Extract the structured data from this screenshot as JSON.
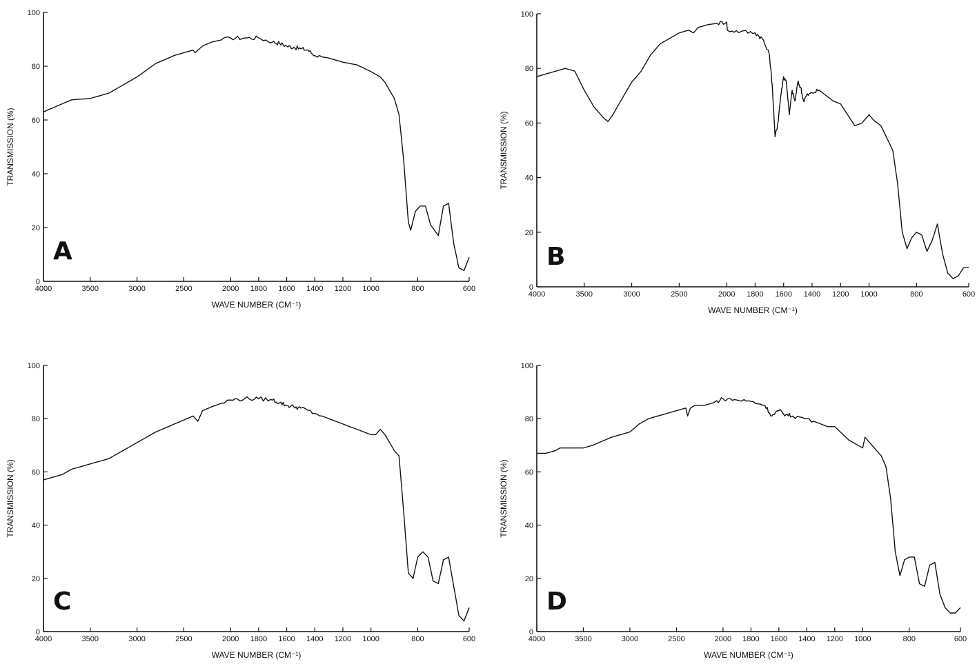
{
  "chart_data": [
    {
      "type": "line",
      "panel_label": "A",
      "xlabel": "WAVE NUMBER (CM⁻¹)",
      "ylabel": "TRANSMISSION (%)",
      "xlim": [
        4000,
        600
      ],
      "ylim": [
        0,
        100
      ],
      "x_ticks": [
        "4000",
        "3500",
        "3000",
        "2500",
        "2000",
        "1800",
        "1600",
        "1400",
        "1200",
        "1000",
        "800",
        "600"
      ],
      "y_ticks": [
        "0",
        "20",
        "40",
        "60",
        "80",
        "100"
      ],
      "grid": false,
      "series": [
        {
          "x": [
            4000,
            3800,
            3700,
            3500,
            3300,
            3000,
            2800,
            2600,
            2400,
            2380,
            2300,
            2200,
            2000,
            1900,
            1800,
            1700,
            1650,
            1600,
            1550,
            1500,
            1450,
            1400,
            1300,
            1200,
            1100,
            1000,
            960,
            940,
            920,
            900,
            880,
            860,
            840,
            830,
            810,
            790,
            770,
            750,
            720,
            700,
            680,
            660,
            640,
            620,
            600
          ],
          "y": [
            63,
            66,
            67.5,
            68,
            70,
            76,
            81,
            84,
            86,
            85,
            87.5,
            89,
            90.5,
            90.5,
            90.5,
            89,
            88.5,
            87.5,
            87,
            86.5,
            86,
            84,
            83,
            81.5,
            80.5,
            78,
            76,
            74,
            71,
            68,
            62,
            45,
            22,
            19,
            26,
            28,
            28,
            21,
            17,
            28,
            29,
            14,
            5,
            4,
            9
          ]
        }
      ]
    },
    {
      "type": "line",
      "panel_label": "B",
      "xlabel": "WAVE NUMBER (CM⁻¹)",
      "ylabel": "TRANSMISSION (%)",
      "xlim": [
        4000,
        600
      ],
      "ylim": [
        0,
        100
      ],
      "x_ticks": [
        "4000",
        "3500",
        "3000",
        "2500",
        "2000",
        "1800",
        "1600",
        "1400",
        "1200",
        "1000",
        "800",
        "600"
      ],
      "y_ticks": [
        "0",
        "20",
        "40",
        "60",
        "80",
        "100"
      ],
      "grid": false,
      "series": [
        {
          "x": [
            4000,
            3800,
            3700,
            3600,
            3500,
            3400,
            3300,
            3250,
            3200,
            3100,
            3000,
            2900,
            2800,
            2700,
            2600,
            2500,
            2400,
            2350,
            2300,
            2200,
            2100,
            2000,
            1995,
            1900,
            1800,
            1750,
            1700,
            1680,
            1660,
            1640,
            1620,
            1600,
            1580,
            1560,
            1540,
            1520,
            1500,
            1480,
            1460,
            1440,
            1400,
            1350,
            1300,
            1250,
            1200,
            1100,
            1050,
            1000,
            980,
            950,
            900,
            880,
            860,
            840,
            820,
            800,
            780,
            760,
            740,
            720,
            700,
            680,
            660,
            640,
            620,
            600
          ],
          "y": [
            77,
            79,
            80,
            79,
            72,
            66,
            62,
            60.5,
            63,
            69,
            75,
            79,
            85,
            89,
            91,
            93,
            94,
            93,
            95,
            96,
            96.5,
            97,
            94,
            93.5,
            93,
            91,
            85,
            74,
            55,
            60,
            70,
            77,
            75,
            63,
            72,
            68,
            75,
            73,
            68,
            70,
            71,
            72,
            70,
            68,
            67,
            59,
            60,
            63,
            61,
            59,
            50,
            38,
            20,
            14,
            18,
            20,
            19,
            13,
            17,
            23,
            12,
            5,
            3,
            4,
            7,
            7
          ]
        }
      ]
    },
    {
      "type": "line",
      "panel_label": "C",
      "xlabel": "WAVE NUMBER (CM⁻¹)",
      "ylabel": "TRANSMISSION (%)",
      "xlim": [
        4000,
        600
      ],
      "ylim": [
        0,
        100
      ],
      "x_ticks": [
        "4000",
        "3500",
        "3000",
        "2500",
        "2000",
        "1800",
        "1600",
        "1400",
        "1200",
        "1000",
        "800",
        "600"
      ],
      "y_ticks": [
        "0",
        "20",
        "40",
        "60",
        "80",
        "100"
      ],
      "grid": false,
      "series": [
        {
          "x": [
            4000,
            3800,
            3700,
            3500,
            3300,
            3000,
            2800,
            2600,
            2400,
            2350,
            2300,
            2200,
            2000,
            1900,
            1800,
            1700,
            1650,
            1600,
            1550,
            1500,
            1400,
            1300,
            1200,
            1100,
            1000,
            980,
            960,
            940,
            920,
            900,
            880,
            860,
            840,
            820,
            800,
            780,
            760,
            740,
            720,
            700,
            680,
            660,
            640,
            620,
            600
          ],
          "y": [
            57,
            59,
            61,
            63,
            65,
            71,
            75,
            78,
            81,
            79,
            83,
            84.5,
            87,
            87.5,
            87.5,
            87,
            86,
            85,
            84.5,
            84,
            82,
            80,
            78,
            76,
            74,
            74,
            76,
            74,
            71,
            68,
            66,
            45,
            22,
            20,
            28,
            30,
            28,
            19,
            18,
            27,
            28,
            17,
            6,
            4,
            9
          ]
        }
      ]
    },
    {
      "type": "line",
      "panel_label": "D",
      "xlabel": "WAVE NUMBER (CM⁻¹)",
      "ylabel": "TRANSMISSION (%)",
      "xlim": [
        4000,
        600
      ],
      "ylim": [
        0,
        100
      ],
      "x_ticks": [
        "4000",
        "3500",
        "3000",
        "2500",
        "2000",
        "1800",
        "1600",
        "1400",
        "1200",
        "1000",
        "800",
        "600"
      ],
      "y_ticks": [
        "0",
        "20",
        "40",
        "60",
        "80",
        "100"
      ],
      "grid": false,
      "series": [
        {
          "x": [
            4000,
            3900,
            3800,
            3750,
            3500,
            3400,
            3200,
            3000,
            2900,
            2800,
            2600,
            2400,
            2380,
            2350,
            2300,
            2200,
            2100,
            2000,
            1900,
            1800,
            1700,
            1650,
            1600,
            1550,
            1500,
            1400,
            1300,
            1250,
            1200,
            1100,
            1000,
            990,
            980,
            960,
            940,
            920,
            900,
            880,
            860,
            840,
            820,
            800,
            780,
            760,
            740,
            720,
            700,
            680,
            660,
            640,
            620,
            600
          ],
          "y": [
            67,
            67,
            68,
            69,
            69,
            70,
            73,
            75,
            78,
            80,
            82,
            84,
            81,
            84,
            85,
            85,
            86,
            87.5,
            87,
            86.5,
            85,
            81,
            83,
            81.5,
            81,
            80,
            78,
            77,
            77,
            72,
            69,
            73,
            72,
            70,
            68,
            66,
            62,
            50,
            30,
            21,
            27,
            28,
            28,
            18,
            17,
            25,
            26,
            14,
            9,
            7,
            7,
            9
          ]
        }
      ]
    }
  ]
}
